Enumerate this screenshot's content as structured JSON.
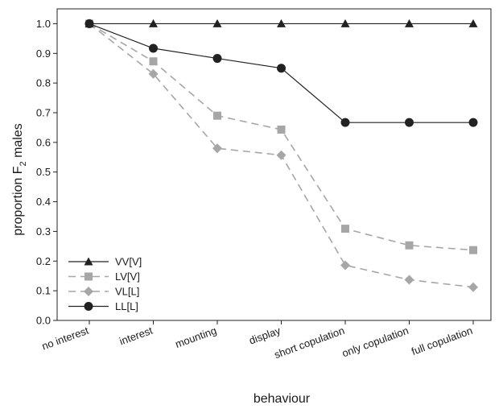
{
  "chart_data": {
    "type": "line",
    "xlabel": "behaviour",
    "ylabel_main": "proportion F",
    "ylabel_sub": "2",
    "ylabel_tail": " males",
    "categories": [
      "no interest",
      "interest",
      "mounting",
      "display",
      "short copulation",
      "only copulation",
      "full copulation"
    ],
    "ylim": [
      0.0,
      1.05
    ],
    "yticks": [
      "0.0",
      "0.1",
      "0.2",
      "0.3",
      "0.4",
      "0.5",
      "0.6",
      "0.7",
      "0.8",
      "0.9",
      "1.0"
    ],
    "grid": false,
    "legend_position": "bottom-left",
    "series": [
      {
        "name": "VV[V]",
        "marker": "triangle",
        "dash": "solid",
        "color": "#222222",
        "values": [
          1.0,
          1.0,
          1.0,
          1.0,
          1.0,
          1.0,
          1.0
        ]
      },
      {
        "name": "LV[V]",
        "marker": "square",
        "dash": "dashed",
        "color": "#a6a6a6",
        "values": [
          1.0,
          0.873,
          0.69,
          0.643,
          0.309,
          0.253,
          0.237
        ]
      },
      {
        "name": "VL[L]",
        "marker": "diamond",
        "dash": "dashed",
        "color": "#a6a6a6",
        "values": [
          1.0,
          0.831,
          0.58,
          0.557,
          0.186,
          0.137,
          0.112
        ]
      },
      {
        "name": "LL[L]",
        "marker": "circle",
        "dash": "solid",
        "color": "#222222",
        "values": [
          1.0,
          0.917,
          0.883,
          0.85,
          0.667,
          0.667,
          0.667
        ]
      }
    ]
  }
}
